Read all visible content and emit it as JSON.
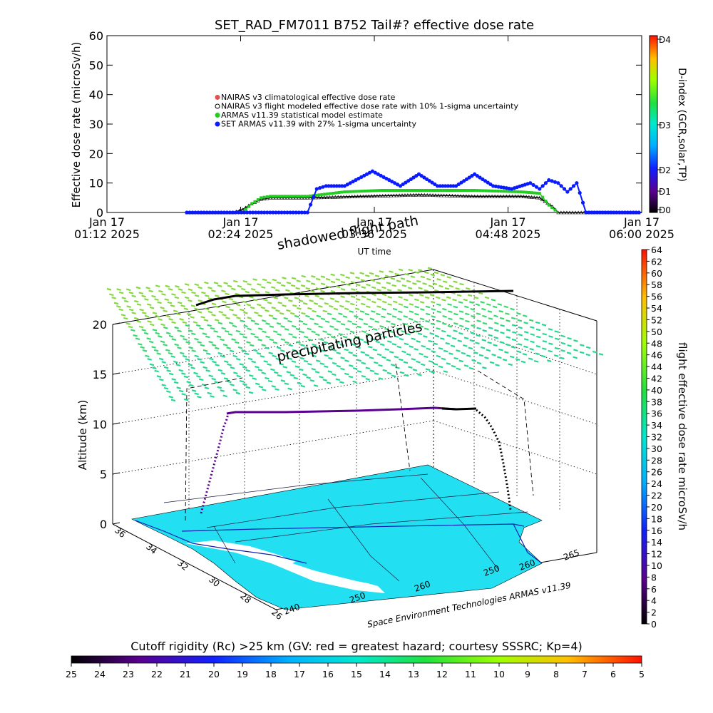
{
  "colors": {
    "nairas_clim": "#e05050",
    "nairas_flight": "#000000",
    "armas_stat": "#22cc22",
    "set_armas": "#0a1aff",
    "map_fill": "#22e0f2",
    "flight_path": "#000000"
  },
  "top_chart": {
    "title": "SET_RAD_FM7011  B752 Tail#? effective dose rate",
    "ylabel": "Effective dose rate (microSv/h)",
    "xlabel": "UT time",
    "right_axis_label": "D-index (GCR,solar,TP)",
    "yticks": [
      "0",
      "10",
      "20",
      "30",
      "40",
      "50",
      "60"
    ],
    "xticks": [
      {
        "l1": "Jan 17",
        "l2": "01:12 2025"
      },
      {
        "l1": "Jan 17",
        "l2": "02:24 2025"
      },
      {
        "l1": "Jan 17",
        "l2": "03:36 2025"
      },
      {
        "l1": "Jan 17",
        "l2": "04:48 2025"
      },
      {
        "l1": "Jan 17",
        "l2": "06:00 2025"
      }
    ],
    "dindex_ticks": [
      "D0",
      "D1",
      "D2",
      "D3",
      "D4"
    ],
    "legend": [
      "NAIRAS v3 climatological effective dose rate",
      "NAIRAS v3 flight modeled effective dose rate with 10% 1-sigma uncertainty",
      "ARMAS v11.39 statistical model estimate",
      "SET ARMAS v11.39 with 27% 1-sigma uncertainty"
    ]
  },
  "chart_data": [
    {
      "type": "line",
      "title": "SET_RAD_FM7011  B752 Tail#? effective dose rate",
      "xlabel": "UT time",
      "ylabel": "Effective dose rate (microSv/h)",
      "ylim": [
        0,
        60
      ],
      "xlim": [
        "2025-01-17 01:12",
        "2025-01-17 06:00"
      ],
      "series": [
        {
          "name": "NAIRAS v3 flight modeled effective dose rate with 10% 1-sigma uncertainty",
          "x": [
            "01:55",
            "02:20",
            "02:25",
            "02:30",
            "02:35",
            "02:40",
            "03:00",
            "03:30",
            "04:00",
            "04:30",
            "04:55",
            "05:05",
            "05:12",
            "05:15",
            "06:00"
          ],
          "y": [
            0,
            0,
            1,
            3,
            4.5,
            5,
            5,
            5.5,
            6,
            5.5,
            5.5,
            5,
            2,
            0,
            0
          ]
        },
        {
          "name": "ARMAS v11.39 statistical model estimate",
          "x": [
            "02:25",
            "02:30",
            "02:35",
            "02:40",
            "03:00",
            "03:20",
            "03:40",
            "04:00",
            "04:30",
            "04:55",
            "05:05",
            "05:10",
            "05:15"
          ],
          "y": [
            0,
            3,
            5,
            5.5,
            5.5,
            7,
            7.5,
            7.5,
            7.5,
            7,
            6.5,
            2.5,
            0
          ]
        },
        {
          "name": "SET ARMAS v11.39 with 27% 1-sigma uncertainty",
          "x": [
            "01:55",
            "03:00",
            "03:05",
            "03:10",
            "03:20",
            "03:35",
            "03:50",
            "04:00",
            "04:10",
            "04:20",
            "04:30",
            "04:40",
            "04:50",
            "05:00",
            "05:05",
            "05:10",
            "05:15",
            "05:20",
            "05:25",
            "05:30",
            "06:00"
          ],
          "y": [
            0,
            0,
            8,
            9,
            9,
            14,
            9,
            13,
            9,
            9,
            13,
            9,
            8,
            10,
            8,
            11,
            10,
            7,
            10,
            0,
            0
          ]
        }
      ]
    },
    {
      "type": "scatter",
      "title": "",
      "zlabel": "Altitude (km)",
      "zlim": [
        0,
        20
      ],
      "zticks": [
        "0",
        "5",
        "10",
        "15",
        "20"
      ],
      "lat_ticks": [
        "36",
        "34",
        "32",
        "30",
        "28",
        "26"
      ],
      "lon_ticks_front": [
        "240",
        "250",
        "260"
      ],
      "lon_ticks_right": [
        "250",
        "260",
        "265"
      ],
      "annotations": [
        "shadowed flight path",
        "precipitating particles"
      ],
      "footer": "Space Environment Technologies ARMAS v11.39",
      "series": [
        {
          "name": "flight altitude",
          "x": [
            0,
            10,
            20,
            30,
            80,
            90,
            100
          ],
          "y": [
            0,
            5,
            10,
            11,
            11,
            11.5,
            0
          ]
        }
      ]
    }
  ],
  "right_colorbar": {
    "label": "flight effective dose rate microSv/h",
    "ticks": [
      "0",
      "2",
      "4",
      "6",
      "8",
      "10",
      "12",
      "14",
      "16",
      "18",
      "20",
      "22",
      "24",
      "26",
      "28",
      "30",
      "32",
      "34",
      "36",
      "38",
      "40",
      "42",
      "44",
      "46",
      "48",
      "50",
      "52",
      "54",
      "56",
      "58",
      "60",
      "62",
      "64"
    ]
  },
  "bottom_colorbar": {
    "title": "Cutoff rigidity (Rc) >25 km (GV: red = greatest hazard; courtesy SSSRC; Kp=4)",
    "ticks": [
      "25",
      "24",
      "23",
      "22",
      "21",
      "20",
      "19",
      "18",
      "17",
      "16",
      "15",
      "14",
      "13",
      "12",
      "11",
      "10",
      "9",
      "8",
      "7",
      "6",
      "5"
    ]
  },
  "plot3d": {
    "zlabel": "Altitude (km)",
    "zticks": [
      "0",
      "5",
      "10",
      "15",
      "20"
    ],
    "lat_ticks": [
      "36",
      "34",
      "32",
      "30",
      "28",
      "26"
    ],
    "lon_front": [
      "240",
      "250",
      "260"
    ],
    "lon_right": [
      "250",
      "260",
      "265"
    ],
    "shadowed": "shadowed flight path",
    "precip": "precipitating particles",
    "footer": "Space Environment Technologies ARMAS v11.39"
  }
}
